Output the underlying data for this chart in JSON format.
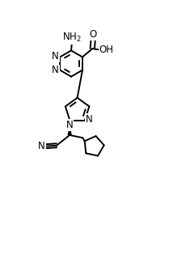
{
  "background_color": "#ffffff",
  "line_color": "#000000",
  "line_width": 1.4,
  "font_size": 8.5,
  "figsize": [
    2.14,
    3.2
  ],
  "dpi": 100,
  "xlim": [
    -0.05,
    1.05
  ],
  "ylim": [
    -0.05,
    1.55
  ]
}
